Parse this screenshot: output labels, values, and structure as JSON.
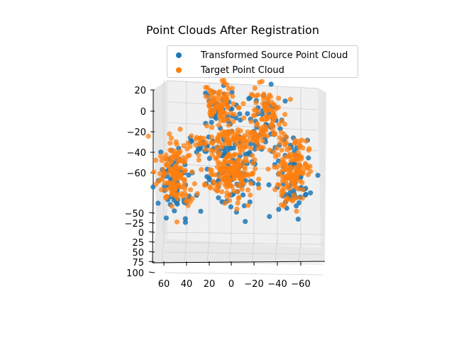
{
  "chart_data": {
    "type": "scatter",
    "projection": "3d",
    "title": "Point Clouds After Registration",
    "xlabel": "",
    "ylabel": "",
    "zlabel": "",
    "x_ticks": [
      "60",
      "40",
      "20",
      "0",
      "−20",
      "−40",
      "−60"
    ],
    "y_ticks": [
      "−50",
      "−25",
      "0",
      "25",
      "50",
      "75",
      "100"
    ],
    "z_ticks": [
      "20",
      "0",
      "−20",
      "−40",
      "−60"
    ],
    "xlim": [
      -75,
      70
    ],
    "ylim": [
      -60,
      100
    ],
    "zlim": [
      -75,
      30
    ],
    "grid": true,
    "legend_position": "top-right",
    "series": [
      {
        "name": "Transformed Source Point Cloud",
        "color": "#1f77b4"
      },
      {
        "name": "Target Point Cloud",
        "color": "#ff7f0e"
      }
    ],
    "clusters": [
      {
        "label": "upper-left-lobe",
        "cx": 10,
        "cz": 5,
        "spread": [
          16,
          22
        ],
        "count": 90
      },
      {
        "label": "upper-right-lobe",
        "cx": -30,
        "cz": 0,
        "spread": [
          16,
          22
        ],
        "count": 80
      },
      {
        "label": "middle-band",
        "cx": -5,
        "cz": -28,
        "spread": [
          50,
          10
        ],
        "count": 120
      },
      {
        "label": "left-arc",
        "cx": 50,
        "cz": -60,
        "spread": [
          16,
          30
        ],
        "count": 140
      },
      {
        "label": "right-arc",
        "cx": -55,
        "cz": -60,
        "spread": [
          14,
          30
        ],
        "count": 140
      },
      {
        "label": "center-mass",
        "cx": 0,
        "cz": -60,
        "spread": [
          22,
          20
        ],
        "count": 160
      }
    ]
  }
}
